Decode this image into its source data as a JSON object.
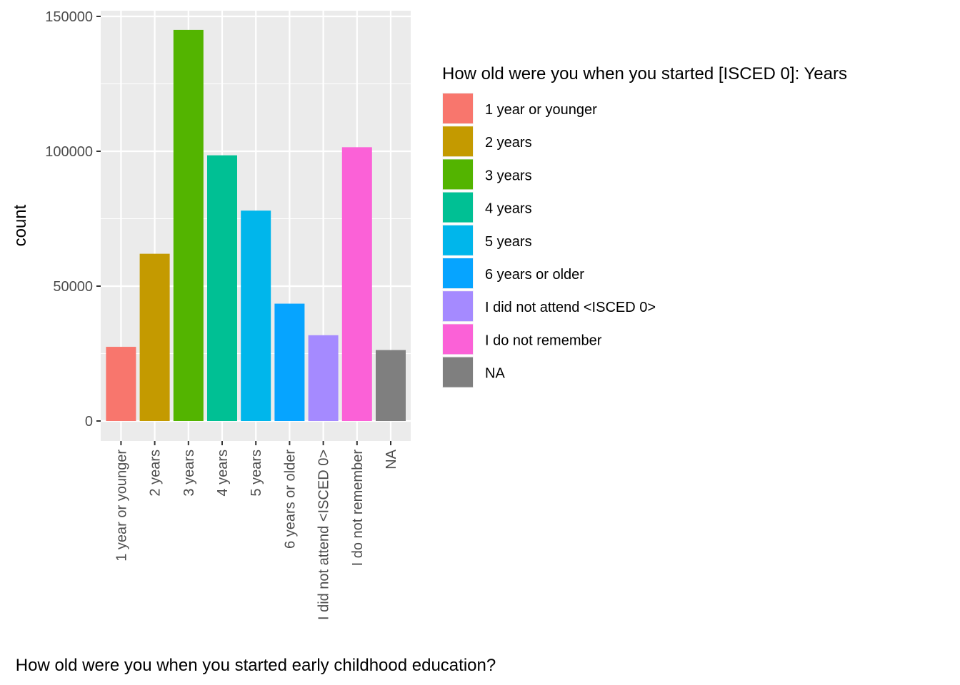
{
  "chart_data": {
    "type": "bar",
    "title": "",
    "xlabel": "How old were you when you started early childhood education?",
    "ylabel": "count",
    "categories": [
      "1 year or younger",
      "2 years",
      "3 years",
      "4 years",
      "5 years",
      "6 years or older",
      "I did not attend <ISCED 0>",
      "I do not remember",
      "NA"
    ],
    "values": [
      27500,
      62000,
      145000,
      98500,
      78000,
      43500,
      31800,
      101500,
      26300
    ],
    "colors": [
      "#F8766D",
      "#C49A00",
      "#53B400",
      "#00C094",
      "#00B6EB",
      "#06A4FF",
      "#A58AFF",
      "#FB61D7",
      "#7F7F7F"
    ],
    "ylim": [
      0,
      152500
    ],
    "yticks": [
      0,
      50000,
      100000,
      150000
    ],
    "ytick_labels": [
      "0",
      "50000",
      "100000",
      "150000"
    ],
    "grid": true,
    "legend": {
      "title": "How old were you when you started [ISCED 0]: Years",
      "position": "right",
      "entries": [
        "1 year or younger",
        "2 years",
        "3 years",
        "4 years",
        "5 years",
        "6 years or older",
        "I did not attend <ISCED 0>",
        "I do not remember",
        "NA"
      ]
    }
  }
}
